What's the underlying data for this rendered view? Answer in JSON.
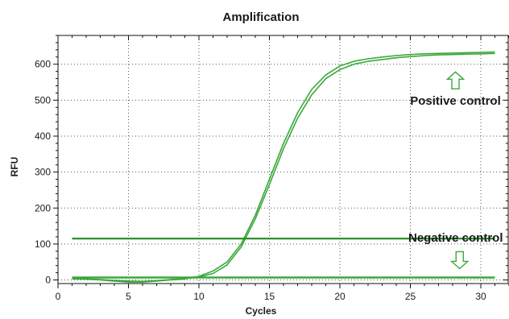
{
  "chart_data": {
    "type": "line",
    "title": "Amplification",
    "xlabel": "Cycles",
    "ylabel": "RFU",
    "xlim": [
      0,
      32
    ],
    "ylim": [
      -10,
      680
    ],
    "x_ticks": [
      0,
      5,
      10,
      15,
      20,
      25,
      30
    ],
    "y_ticks": [
      0,
      100,
      200,
      300,
      400,
      500,
      600
    ],
    "grid": true,
    "legend": "none",
    "colors": {
      "curve": "#3aa83a",
      "threshold": "#1f8a1f",
      "arrow": "#3aa83a"
    },
    "series": [
      {
        "x": [
          1,
          2,
          3,
          4,
          5,
          6,
          7,
          8,
          9,
          10,
          11,
          12,
          13,
          14,
          15,
          16,
          17,
          18,
          19,
          20,
          21,
          22,
          23,
          24,
          25,
          26,
          27,
          28,
          29,
          30,
          31
        ],
        "values": [
          3,
          2,
          0,
          -3,
          -6,
          -6,
          -3,
          0,
          3,
          10,
          25,
          50,
          100,
          180,
          280,
          380,
          465,
          530,
          570,
          595,
          608,
          615,
          620,
          624,
          627,
          629,
          630,
          631,
          632,
          633,
          634
        ]
      },
      {
        "x": [
          1,
          2,
          3,
          4,
          5,
          6,
          7,
          8,
          9,
          10,
          11,
          12,
          13,
          14,
          15,
          16,
          17,
          18,
          19,
          20,
          21,
          22,
          23,
          24,
          25,
          26,
          27,
          28,
          29,
          30,
          31
        ],
        "values": [
          4,
          3,
          1,
          -1,
          -3,
          -4,
          -2,
          1,
          4,
          8,
          18,
          42,
          92,
          170,
          265,
          365,
          450,
          515,
          560,
          585,
          600,
          608,
          613,
          618,
          621,
          624,
          626,
          627,
          628,
          629,
          630
        ]
      },
      {
        "x": [
          1,
          2,
          3,
          4,
          5,
          6,
          7,
          8,
          9,
          10,
          11,
          12,
          13,
          14,
          15,
          16,
          17,
          18,
          19,
          20,
          21,
          22,
          23,
          24,
          25,
          26,
          27,
          28,
          29,
          30,
          31
        ],
        "values": [
          8,
          8,
          8,
          8,
          8,
          8,
          8,
          8,
          8,
          8,
          8,
          8,
          8,
          8,
          8,
          8,
          8,
          8,
          8,
          8,
          8,
          8,
          8,
          8,
          8,
          8,
          8,
          8,
          8,
          8,
          8
        ]
      },
      {
        "x": [
          1,
          2,
          3,
          4,
          5,
          6,
          7,
          8,
          9,
          10,
          11,
          12,
          13,
          14,
          15,
          16,
          17,
          18,
          19,
          20,
          21,
          22,
          23,
          24,
          25,
          26,
          27,
          28,
          29,
          30,
          31
        ],
        "values": [
          6,
          6,
          6,
          6,
          6,
          6,
          6,
          6,
          6,
          6,
          6,
          6,
          6,
          6,
          6,
          6,
          6,
          6,
          6,
          6,
          6,
          6,
          6,
          6,
          6,
          6,
          6,
          6,
          6,
          6,
          6
        ]
      }
    ],
    "threshold": {
      "value": 115,
      "x_range": [
        1,
        31
      ]
    },
    "annotations": [
      {
        "text": "Positive control",
        "arrow": "up",
        "arrow_at": {
          "x": 28.2,
          "y": 555
        }
      },
      {
        "text": "Negative control",
        "arrow": "down",
        "arrow_at": {
          "x": 28.5,
          "y": 55
        }
      }
    ]
  }
}
